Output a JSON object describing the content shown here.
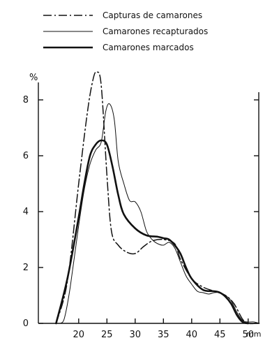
{
  "chart_data": {
    "type": "line",
    "title": "",
    "xlabel": "",
    "ylabel": "",
    "x_unit": "mm",
    "y_unit": "%",
    "xlim": [
      12,
      52
    ],
    "ylim": [
      0,
      9
    ],
    "x_ticks": [
      20,
      25,
      30,
      35,
      40,
      45,
      50
    ],
    "y_ticks": [
      0,
      2,
      4,
      6,
      8
    ],
    "grid": false,
    "legend_position": "top-left",
    "series": [
      {
        "name": "Capturas de camarones",
        "style": "dashdot",
        "stroke_weight": "medium",
        "points": [
          [
            16.0,
            0.0
          ],
          [
            18.0,
            1.5
          ],
          [
            20.0,
            5.0
          ],
          [
            21.5,
            7.5
          ],
          [
            22.5,
            8.7
          ],
          [
            23.2,
            9.0
          ],
          [
            24.0,
            8.5
          ],
          [
            25.0,
            5.3
          ],
          [
            25.8,
            3.3
          ],
          [
            27.0,
            2.8
          ],
          [
            28.5,
            2.55
          ],
          [
            30.0,
            2.5
          ],
          [
            31.5,
            2.75
          ],
          [
            33.0,
            2.95
          ],
          [
            35.0,
            3.0
          ],
          [
            37.0,
            2.85
          ],
          [
            38.0,
            2.3
          ],
          [
            40.0,
            1.6
          ],
          [
            42.0,
            1.3
          ],
          [
            44.0,
            1.15
          ],
          [
            46.0,
            1.0
          ],
          [
            47.5,
            0.7
          ],
          [
            49.0,
            0.15
          ],
          [
            50.0,
            0.0
          ],
          [
            51.5,
            0.0
          ]
        ]
      },
      {
        "name": "Camarones recapturados",
        "style": "solid",
        "stroke_weight": "thin",
        "points": [
          [
            16.8,
            0.0
          ],
          [
            17.5,
            0.2
          ],
          [
            18.5,
            1.3
          ],
          [
            20.0,
            3.5
          ],
          [
            21.0,
            4.8
          ],
          [
            22.0,
            5.7
          ],
          [
            23.0,
            6.2
          ],
          [
            24.0,
            6.5
          ],
          [
            24.8,
            7.6
          ],
          [
            25.5,
            7.85
          ],
          [
            26.3,
            7.3
          ],
          [
            27.0,
            5.8
          ],
          [
            28.0,
            5.0
          ],
          [
            29.0,
            4.4
          ],
          [
            30.0,
            4.35
          ],
          [
            31.0,
            4.0
          ],
          [
            32.0,
            3.3
          ],
          [
            33.0,
            3.0
          ],
          [
            34.0,
            2.85
          ],
          [
            35.0,
            2.8
          ],
          [
            36.0,
            2.9
          ],
          [
            37.0,
            2.7
          ],
          [
            38.0,
            2.2
          ],
          [
            39.0,
            1.7
          ],
          [
            40.0,
            1.4
          ],
          [
            41.0,
            1.15
          ],
          [
            42.0,
            1.1
          ],
          [
            43.0,
            1.05
          ],
          [
            44.0,
            1.1
          ],
          [
            45.0,
            1.1
          ],
          [
            46.0,
            1.0
          ],
          [
            47.0,
            0.8
          ],
          [
            48.0,
            0.4
          ],
          [
            49.0,
            0.1
          ],
          [
            50.0,
            0.05
          ],
          [
            51.0,
            0.05
          ],
          [
            52.0,
            0.0
          ]
        ]
      },
      {
        "name": "Camarones marcados",
        "style": "solid",
        "stroke_weight": "thick",
        "points": [
          [
            16.0,
            0.0
          ],
          [
            18.0,
            1.6
          ],
          [
            20.0,
            3.8
          ],
          [
            21.0,
            5.0
          ],
          [
            22.0,
            6.0
          ],
          [
            23.0,
            6.4
          ],
          [
            24.0,
            6.55
          ],
          [
            25.0,
            6.4
          ],
          [
            26.0,
            5.6
          ],
          [
            27.0,
            4.6
          ],
          [
            28.0,
            3.9
          ],
          [
            30.0,
            3.4
          ],
          [
            32.0,
            3.15
          ],
          [
            34.0,
            3.1
          ],
          [
            35.0,
            3.05
          ],
          [
            36.0,
            3.0
          ],
          [
            37.0,
            2.8
          ],
          [
            38.0,
            2.5
          ],
          [
            39.0,
            2.0
          ],
          [
            40.0,
            1.6
          ],
          [
            42.0,
            1.2
          ],
          [
            44.0,
            1.15
          ],
          [
            45.0,
            1.1
          ],
          [
            46.0,
            0.95
          ],
          [
            47.0,
            0.7
          ],
          [
            48.0,
            0.3
          ],
          [
            49.0,
            0.05
          ],
          [
            50.0,
            0.0
          ]
        ]
      }
    ]
  }
}
